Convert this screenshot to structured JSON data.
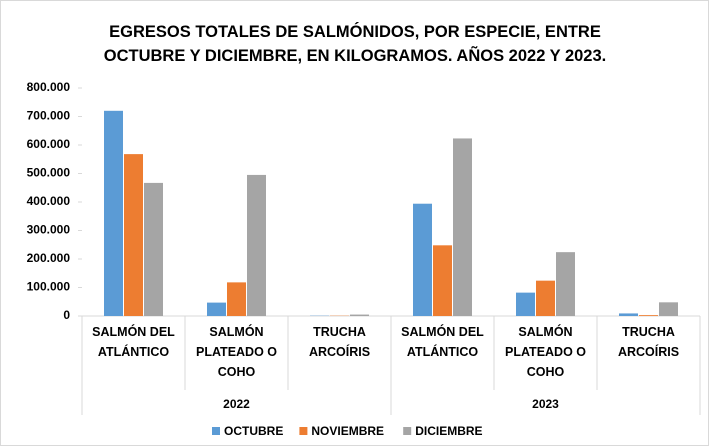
{
  "chart_data": {
    "type": "bar",
    "title": "EGRESOS TOTALES DE SALMÓNIDOS, POR ESPECIE, ENTRE OCTUBRE Y DICIEMBRE, EN KILOGRAMOS. AÑOS 2022 Y 2023.",
    "categories": [
      "SALMÓN DEL ATLÁNTICO",
      "SALMÓN PLATEADO O COHO",
      "TRUCHA ARCOÍRIS",
      "SALMÓN DEL ATLÁNTICO",
      "SALMÓN PLATEADO O COHO",
      "TRUCHA ARCOÍRIS"
    ],
    "category_groups": [
      "2022",
      "2023"
    ],
    "series": [
      {
        "name": "OCTUBRE",
        "color": "#5b9bd5",
        "values": [
          720000,
          47000,
          1000,
          394000,
          82000,
          9000
        ]
      },
      {
        "name": "NOVIEMBRE",
        "color": "#ed7d31",
        "values": [
          568000,
          118000,
          1000,
          248000,
          124000,
          3000
        ]
      },
      {
        "name": "DICIEMBRE",
        "color": "#a5a5a5",
        "values": [
          467000,
          495000,
          5000,
          623000,
          224000,
          48000
        ]
      }
    ],
    "ylim": [
      0,
      800000
    ],
    "yticks": [
      0,
      {
        "value": 100000,
        "label": "100.000"
      },
      {
        "value": 200000,
        "label": "200.000"
      },
      {
        "value": 300000,
        "label": "300.000"
      },
      {
        "value": 400000,
        "label": "400.000"
      },
      {
        "value": 500000,
        "label": "500.000"
      },
      {
        "value": 600000,
        "label": "600.000"
      },
      {
        "value": 700000,
        "label": "700.000"
      },
      {
        "value": 800000,
        "label": "800.000"
      }
    ],
    "legend": "bottom"
  }
}
